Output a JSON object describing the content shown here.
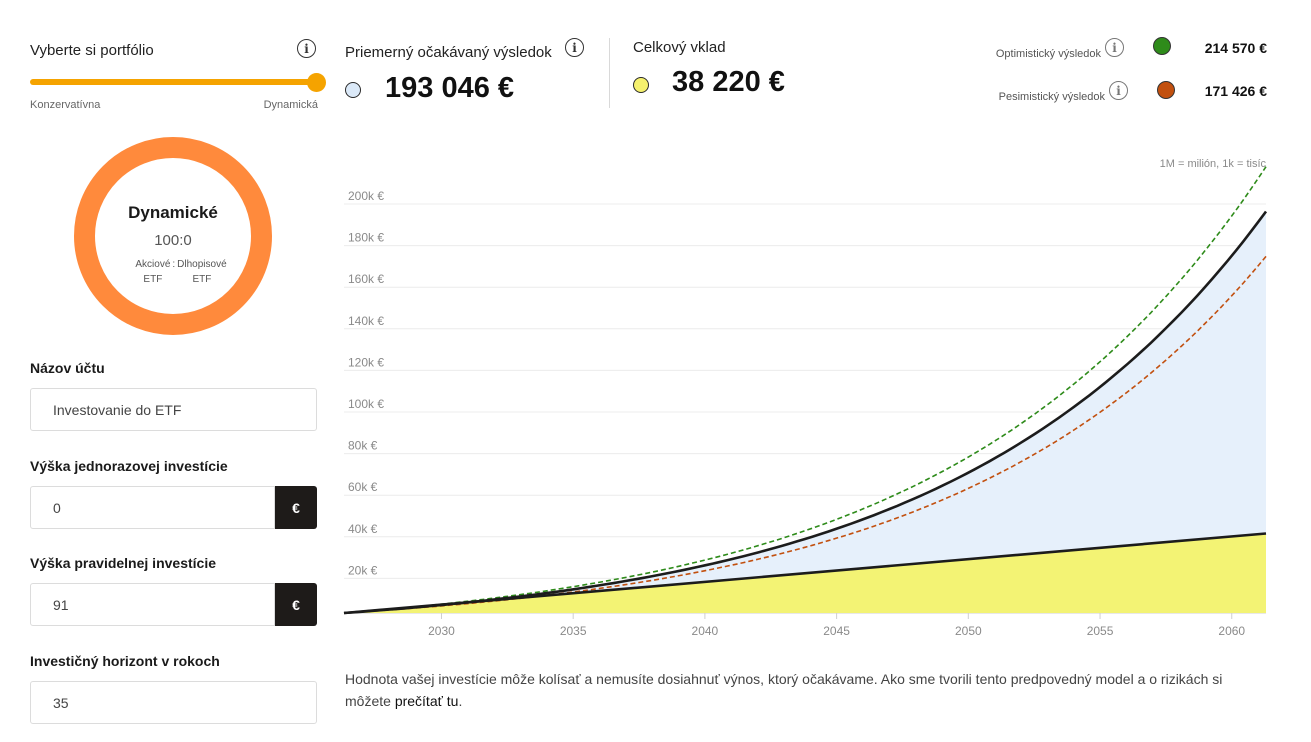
{
  "portfolio": {
    "label": "Vyberte si portfólio",
    "slider_min_label": "Konzervatívna",
    "slider_max_label": "Dynamická",
    "slider_position": 1.0,
    "accent_color": "#f5a300"
  },
  "ring": {
    "title": "Dynamické",
    "ratio": "100:0",
    "legend_left_1": "Akciové",
    "legend_left_2": "ETF",
    "legend_sep": ":",
    "legend_right_1": "Dlhopisové",
    "legend_right_2": "ETF",
    "color": "#ff8a3c"
  },
  "form": {
    "account_name_label": "Názov účtu",
    "account_name_value": "Investovanie do ETF",
    "lump_sum_label": "Výška jednorazovej investície",
    "lump_sum_value": "0",
    "regular_label": "Výška pravidelnej investície",
    "regular_value": "91",
    "horizon_label": "Investičný horizont v rokoch",
    "horizon_value": "35",
    "currency_button": "€"
  },
  "summary": {
    "average_label": "Priemerný očakávaný výsledok",
    "average_value": "193 046 €",
    "deposit_label": "Celkový vklad",
    "deposit_value": "38 220 €",
    "optimistic_label": "Optimistický výsledok",
    "optimistic_value": "214 570 €",
    "optimistic_color": "#2e8b1a",
    "pessimistic_label": "Pesimistický výsledok",
    "pessimistic_value": "171 426 €",
    "pessimistic_color": "#c2500f"
  },
  "chart_note": "1M = milión, 1k = tisíc",
  "chart_data": {
    "type": "area",
    "y_ticks": [
      "20k €",
      "40k €",
      "60k €",
      "80k €",
      "100k €",
      "120k €",
      "140k €",
      "160k €",
      "180k €",
      "200k €"
    ],
    "x_ticks": [
      "2030",
      "2035",
      "2040",
      "2045",
      "2050",
      "2055",
      "2060"
    ],
    "xlim": [
      2026.3,
      2061.3
    ],
    "ylim": [
      0,
      210000
    ],
    "series": [
      {
        "name": "Priemerný očakávaný výsledok",
        "start": 0,
        "end": 193046
      },
      {
        "name": "Optimistický výsledok",
        "start": 0,
        "end": 214570
      },
      {
        "name": "Pesimistický výsledok",
        "start": 0,
        "end": 171426
      },
      {
        "name": "Celkový vklad",
        "start": 0,
        "end": 38220
      }
    ]
  },
  "disclaimer": {
    "text": "Hodnota vašej investície môže kolísať a nemusíte dosiahnuť výnos, ktorý očakávame. Ako sme tvorili tento predpovedný model a o rizikách si môžete ",
    "link": "prečítať tu",
    "end": "."
  }
}
